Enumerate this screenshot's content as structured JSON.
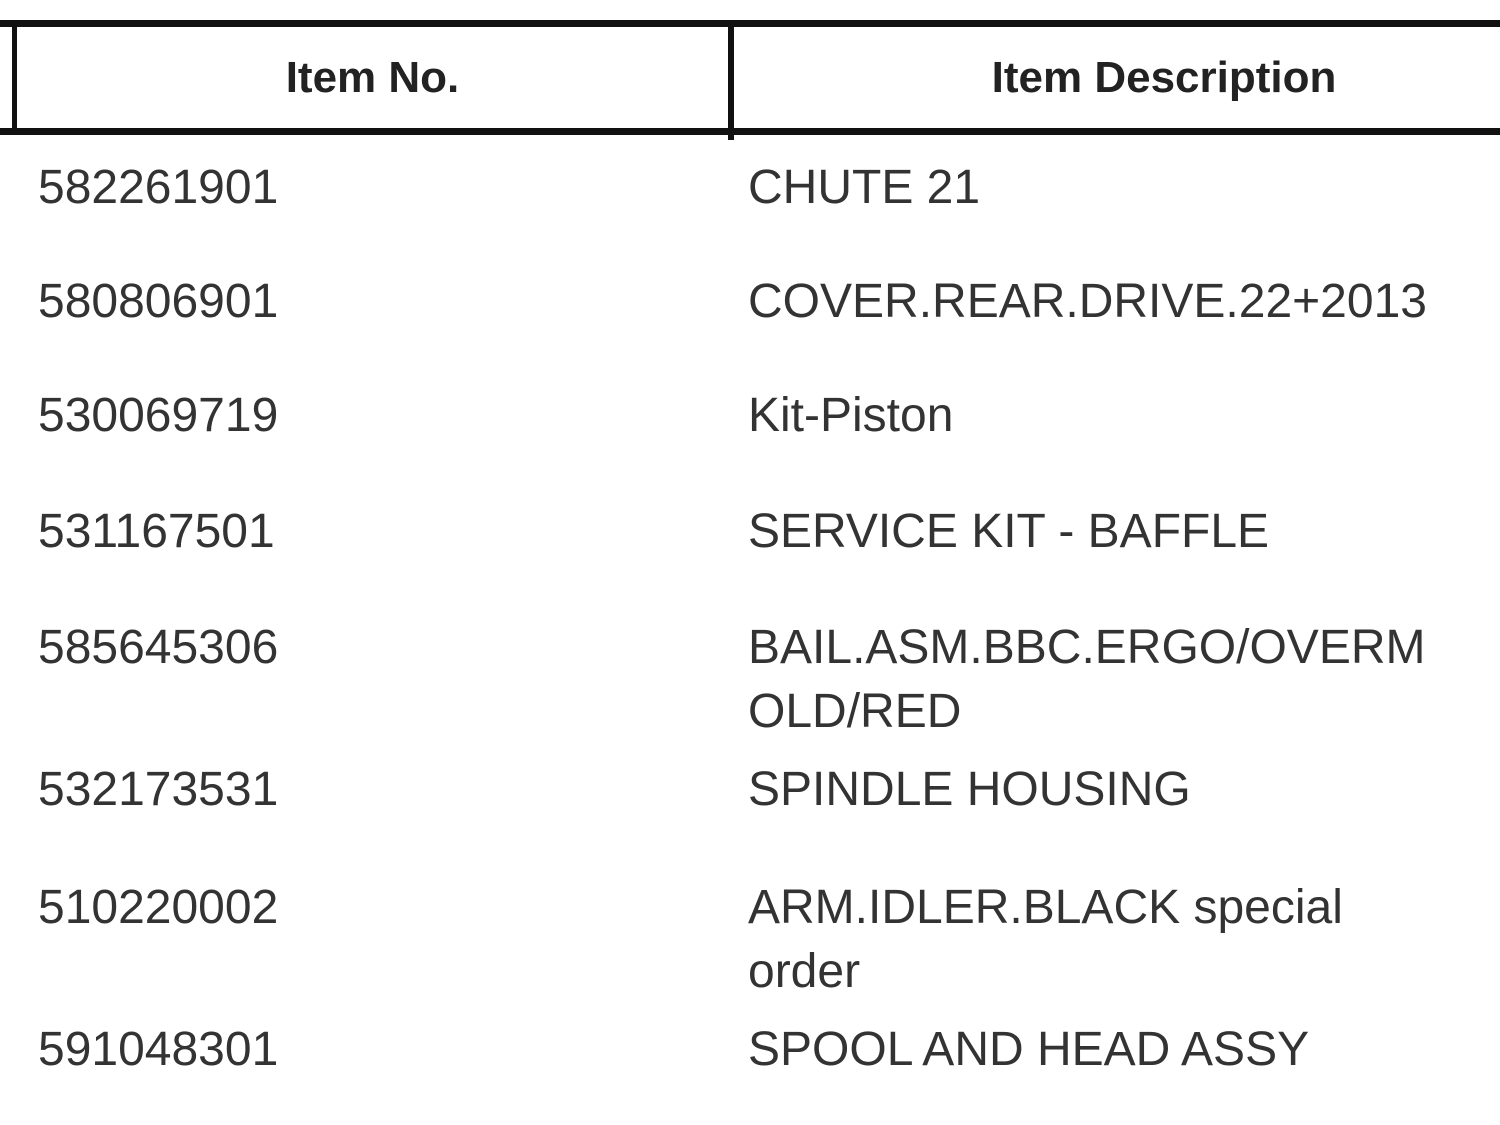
{
  "table": {
    "headers": [
      "Item No.",
      "Item Description"
    ],
    "rows": [
      {
        "item_no": "582261901",
        "description": [
          "CHUTE 21"
        ]
      },
      {
        "item_no": "580806901",
        "description": [
          "COVER.REAR.DRIVE.22+2013"
        ]
      },
      {
        "item_no": "530069719",
        "description": [
          "Kit-Piston"
        ]
      },
      {
        "item_no": "531167501",
        "description": [
          "SERVICE KIT - BAFFLE"
        ]
      },
      {
        "item_no": "585645306",
        "description": [
          "BAIL.ASM.BBC.ERGO/OVERM",
          "OLD/RED"
        ]
      },
      {
        "item_no": "532173531",
        "description": [
          "SPINDLE HOUSING"
        ]
      },
      {
        "item_no": "510220002",
        "description": [
          "ARM.IDLER.BLACK special",
          "order"
        ]
      },
      {
        "item_no": "591048301",
        "description": [
          "SPOOL AND HEAD ASSY"
        ]
      }
    ]
  }
}
